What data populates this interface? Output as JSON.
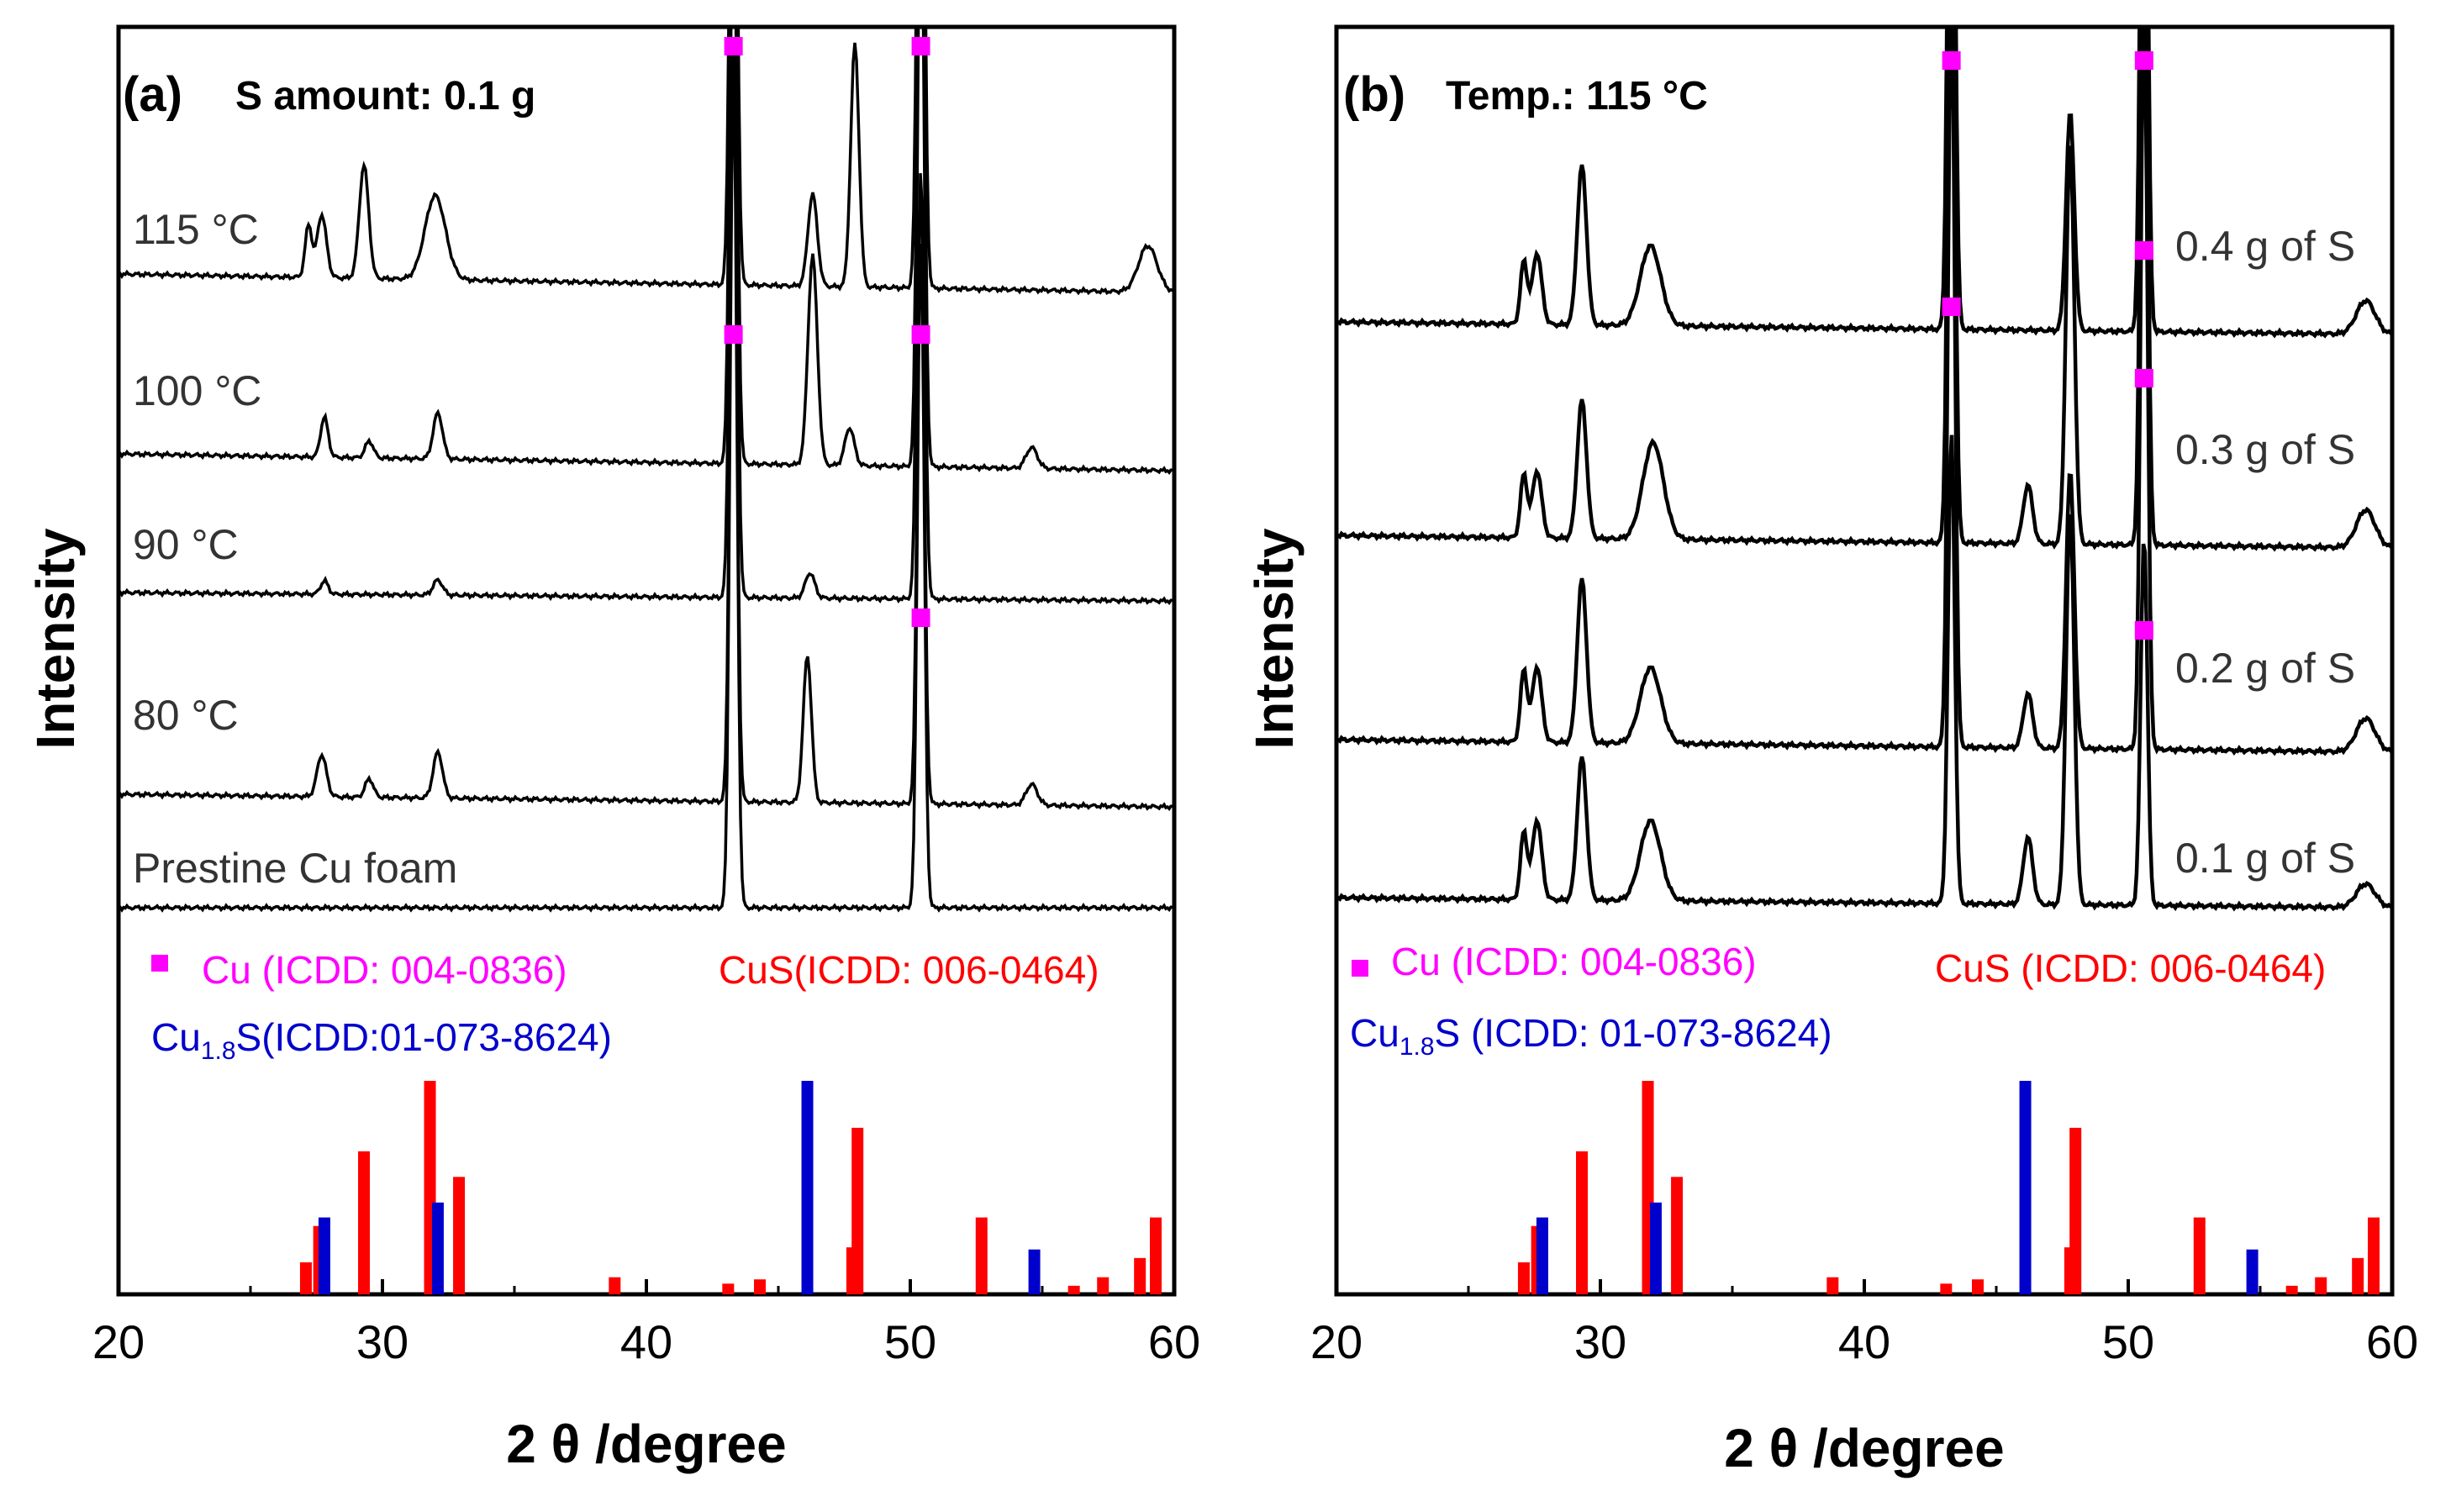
{
  "chart_data": [
    {
      "type": "line",
      "panel_label": "(a)",
      "condition": "S amount: 0.1 g",
      "xlabel": "2 θ /degree",
      "ylabel": "Intensity",
      "xlim": [
        20,
        60
      ],
      "xticks": [
        "20",
        "30",
        "40",
        "50",
        "60"
      ],
      "series": [
        {
          "name": "115 °C",
          "peaks_deg": [
            27.2,
            27.7,
            29.3,
            32.0,
            43.3,
            46.3,
            47.9,
            50.4,
            59.0
          ],
          "markers_deg": [
            43.3,
            50.4
          ]
        },
        {
          "name": "100 °C",
          "peaks_deg": [
            27.8,
            29.5,
            32.1,
            43.3,
            46.3,
            47.7,
            50.4,
            54.6
          ],
          "markers_deg": [
            43.3,
            50.4
          ]
        },
        {
          "name": "90 °C",
          "peaks_deg": [
            27.8,
            32.1,
            43.3,
            46.2,
            50.4
          ],
          "markers_deg": []
        },
        {
          "name": "80 °C",
          "peaks_deg": [
            27.7,
            29.5,
            32.1,
            43.3,
            46.1,
            50.4,
            54.6
          ],
          "markers_deg": [
            50.4
          ]
        },
        {
          "name": "Prestine Cu foam",
          "peaks_deg": [
            43.3,
            50.4
          ],
          "markers_deg": []
        }
      ],
      "legend": {
        "cu": "Cu (ICDD: 004-0836)",
        "cus": "CuS(ICDD: 006-0464)",
        "cu18s_main": "Cu",
        "cu18s_sub": "1.8",
        "cu18s_rest": "S(ICDD:01-073-8624)"
      },
      "reference_CuS": {
        "x": [
          27.1,
          27.6,
          29.3,
          31.8,
          32.9,
          38.8,
          43.1,
          44.3,
          47.8,
          48.0,
          52.7,
          56.2,
          57.3,
          58.7,
          59.3
        ],
        "y": [
          0.15,
          0.32,
          0.67,
          1.0,
          0.55,
          0.08,
          0.05,
          0.07,
          0.22,
          0.78,
          0.36,
          0.04,
          0.08,
          0.17,
          0.36
        ]
      },
      "reference_Cu18S": {
        "x": [
          27.8,
          32.1,
          46.1,
          54.7
        ],
        "y": [
          0.36,
          0.43,
          1.0,
          0.21
        ]
      }
    },
    {
      "type": "line",
      "panel_label": "(b)",
      "condition": "Temp.: 115 °C",
      "xlabel": "2 θ /degree",
      "ylabel": "Intensity",
      "xlim": [
        20,
        60
      ],
      "xticks": [
        "20",
        "30",
        "40",
        "50",
        "60"
      ],
      "series": [
        {
          "name": "0.4 g of S",
          "peaks_deg": [
            27.1,
            27.6,
            29.3,
            31.9,
            43.3,
            47.8,
            50.6,
            59.0
          ],
          "markers_deg": [
            43.3,
            50.6
          ]
        },
        {
          "name": "0.3 g of S",
          "peaks_deg": [
            27.1,
            27.6,
            29.3,
            32.0,
            43.3,
            46.2,
            47.8,
            50.6,
            59.0
          ],
          "markers_deg": [
            50.6
          ]
        },
        {
          "name": "0.2 g of S",
          "peaks_deg": [
            27.1,
            27.6,
            29.3,
            31.9,
            43.3,
            46.2,
            47.8,
            50.6,
            59.0
          ],
          "markers_deg": [
            50.6
          ]
        },
        {
          "name": "0.1 g of S",
          "peaks_deg": [
            27.1,
            27.6,
            29.3,
            31.9,
            43.3,
            46.2,
            47.8,
            50.6,
            59.0
          ],
          "markers_deg": []
        }
      ],
      "legend": {
        "cu": "Cu (ICDD: 004-0836)",
        "cus": "CuS (ICDD: 006-0464)",
        "cu18s_main": "Cu",
        "cu18s_sub": "1.8",
        "cu18s_rest": "S (ICDD: 01-073-8624)"
      },
      "reference_CuS": {
        "x": [
          27.1,
          27.6,
          29.3,
          31.8,
          32.9,
          38.8,
          43.1,
          44.3,
          47.8,
          48.0,
          52.7,
          56.2,
          57.3,
          58.7,
          59.3
        ],
        "y": [
          0.15,
          0.32,
          0.67,
          1.0,
          0.55,
          0.08,
          0.05,
          0.07,
          0.22,
          0.78,
          0.36,
          0.04,
          0.08,
          0.17,
          0.36
        ]
      },
      "reference_Cu18S": {
        "x": [
          27.8,
          32.1,
          46.1,
          54.7
        ],
        "y": [
          0.36,
          0.43,
          1.0,
          0.21
        ]
      }
    }
  ],
  "colors": {
    "cu": "#ff00ff",
    "cus": "#ff0000",
    "cu18s": "#0000cc",
    "line": "#000000"
  }
}
